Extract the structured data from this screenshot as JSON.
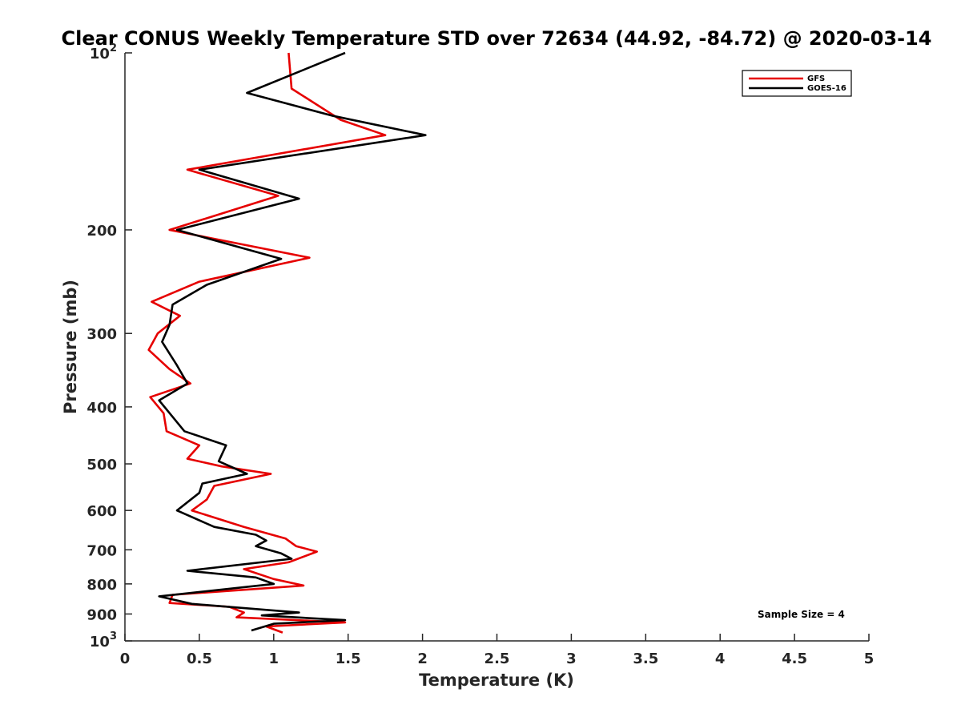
{
  "chart_data": {
    "type": "line",
    "title": "Clear CONUS Weekly Temperature STD over 72634 (44.92, -84.72) @ 2020-03-14",
    "xlabel": "Temperature (K)",
    "ylabel": "Pressure (mb)",
    "xlim": [
      0,
      5
    ],
    "ylim": [
      100,
      1000
    ],
    "y_scale": "log",
    "y_reversed": true,
    "x_ticks": [
      "0",
      "0.5",
      "1",
      "1.5",
      "2",
      "2.5",
      "3",
      "3.5",
      "4",
      "4.5",
      "5"
    ],
    "y_ticks": [
      {
        "value": 100,
        "base": "10",
        "exp": "2"
      },
      {
        "value": 200,
        "label": "200"
      },
      {
        "value": 300,
        "label": "300"
      },
      {
        "value": 400,
        "label": "400"
      },
      {
        "value": 500,
        "label": "500"
      },
      {
        "value": 600,
        "label": "600"
      },
      {
        "value": 700,
        "label": "700"
      },
      {
        "value": 800,
        "label": "800"
      },
      {
        "value": 900,
        "label": "900"
      },
      {
        "value": 1000,
        "base": "10",
        "exp": "3"
      }
    ],
    "legend_position": "top-right",
    "grid": false,
    "annotation": "Sample Size = 4",
    "series": [
      {
        "name": "GFS",
        "color": "#e60000",
        "points": [
          [
            1.1,
            100
          ],
          [
            1.12,
            115
          ],
          [
            1.45,
            130
          ],
          [
            1.75,
            138
          ],
          [
            0.42,
            158
          ],
          [
            1.03,
            175
          ],
          [
            0.3,
            200
          ],
          [
            1.24,
            223
          ],
          [
            0.5,
            245
          ],
          [
            0.18,
            265
          ],
          [
            0.37,
            280
          ],
          [
            0.22,
            300
          ],
          [
            0.16,
            320
          ],
          [
            0.3,
            345
          ],
          [
            0.44,
            365
          ],
          [
            0.17,
            385
          ],
          [
            0.26,
            410
          ],
          [
            0.28,
            440
          ],
          [
            0.5,
            465
          ],
          [
            0.42,
            490
          ],
          [
            0.65,
            505
          ],
          [
            0.98,
            520
          ],
          [
            0.6,
            545
          ],
          [
            0.55,
            575
          ],
          [
            0.45,
            600
          ],
          [
            0.8,
            640
          ],
          [
            1.08,
            670
          ],
          [
            1.15,
            690
          ],
          [
            1.29,
            705
          ],
          [
            1.1,
            735
          ],
          [
            0.8,
            755
          ],
          [
            1.0,
            785
          ],
          [
            1.2,
            805
          ],
          [
            0.32,
            835
          ],
          [
            0.3,
            862
          ],
          [
            0.7,
            875
          ],
          [
            0.8,
            895
          ],
          [
            0.75,
            912
          ],
          [
            1.48,
            930
          ],
          [
            0.95,
            945
          ],
          [
            1.06,
            968
          ]
        ]
      },
      {
        "name": "GOES-16",
        "color": "#000000",
        "points": [
          [
            1.48,
            100
          ],
          [
            0.82,
            117
          ],
          [
            1.4,
            128
          ],
          [
            2.02,
            138
          ],
          [
            0.5,
            158
          ],
          [
            1.17,
            177
          ],
          [
            0.35,
            200
          ],
          [
            1.05,
            224
          ],
          [
            0.55,
            248
          ],
          [
            0.32,
            268
          ],
          [
            0.3,
            290
          ],
          [
            0.25,
            310
          ],
          [
            0.35,
            340
          ],
          [
            0.42,
            365
          ],
          [
            0.23,
            390
          ],
          [
            0.4,
            440
          ],
          [
            0.68,
            465
          ],
          [
            0.63,
            495
          ],
          [
            0.82,
            520
          ],
          [
            0.52,
            540
          ],
          [
            0.5,
            560
          ],
          [
            0.35,
            600
          ],
          [
            0.6,
            640
          ],
          [
            0.88,
            660
          ],
          [
            0.95,
            675
          ],
          [
            0.88,
            690
          ],
          [
            1.05,
            710
          ],
          [
            1.12,
            725
          ],
          [
            0.42,
            760
          ],
          [
            0.88,
            780
          ],
          [
            1.0,
            800
          ],
          [
            0.23,
            840
          ],
          [
            0.45,
            865
          ],
          [
            1.17,
            895
          ],
          [
            0.92,
            905
          ],
          [
            1.48,
            922
          ],
          [
            1.0,
            935
          ],
          [
            0.85,
            960
          ]
        ]
      }
    ]
  }
}
